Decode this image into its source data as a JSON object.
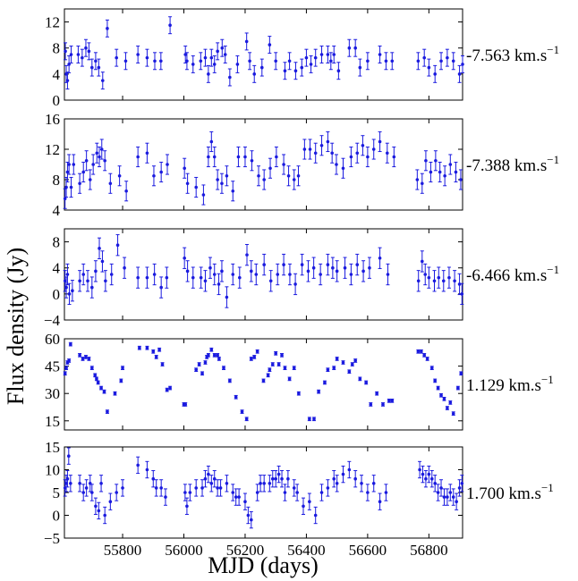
{
  "figure": {
    "ylabel": "Flux density (Jy)",
    "xlabel": "MJD (days)",
    "series_color": "#1a1adf"
  },
  "chart_data": [
    {
      "type": "scatter",
      "velocity_label": "-7.563 km.s",
      "velocity_unit_exp": "−1",
      "xlim": [
        55610,
        56910
      ],
      "ylim": [
        0,
        14
      ],
      "yticks": [
        0,
        4,
        8,
        12
      ],
      "xticks": [
        55800,
        56000,
        56200,
        56400,
        56600,
        56800
      ],
      "err": 1.3,
      "x": [
        55613,
        55616,
        55620,
        55625,
        55632,
        55655,
        55668,
        55680,
        55690,
        55700,
        55712,
        55722,
        55735,
        55750,
        55780,
        55810,
        55850,
        55880,
        55905,
        55925,
        55955,
        56005,
        56010,
        56030,
        56055,
        56070,
        56080,
        56090,
        56100,
        56110,
        56125,
        56135,
        56150,
        56175,
        56205,
        56215,
        56230,
        56255,
        56280,
        56300,
        56330,
        56345,
        56365,
        56385,
        56400,
        56415,
        56430,
        56450,
        56470,
        56480,
        56490,
        56505,
        56540,
        56560,
        56575,
        56600,
        56640,
        56660,
        56680,
        56765,
        56785,
        56800,
        56820,
        56840,
        56860,
        56880,
        56900,
        56910
      ],
      "y": [
        7.5,
        4.0,
        3.0,
        5.5,
        7.0,
        7.0,
        6.5,
        8.0,
        7.5,
        5.0,
        6.0,
        5.0,
        3.0,
        11.0,
        6.5,
        6.0,
        7.0,
        6.5,
        6.0,
        6.0,
        11.5,
        7.0,
        6.0,
        5.5,
        6.0,
        6.5,
        4.0,
        6.5,
        5.5,
        7.5,
        8.0,
        7.0,
        3.5,
        5.5,
        9.0,
        6.0,
        4.0,
        5.0,
        8.5,
        6.0,
        4.5,
        6.0,
        4.5,
        5.0,
        6.5,
        5.5,
        6.5,
        7.0,
        7.0,
        6.0,
        7.0,
        4.5,
        8.0,
        8.0,
        5.0,
        6.0,
        7.0,
        6.0,
        6.0,
        6.0,
        6.5,
        5.0,
        4.0,
        6.0,
        6.5,
        6.0,
        4.0,
        5.5
      ]
    },
    {
      "type": "scatter",
      "velocity_label": "-7.388 km.s",
      "velocity_unit_exp": "−1",
      "xlim": [
        55610,
        56910
      ],
      "ylim": [
        4,
        16
      ],
      "yticks": [
        4,
        8,
        12,
        16
      ],
      "xticks": [
        55800,
        56000,
        56200,
        56400,
        56600,
        56800
      ],
      "err": 1.3,
      "x": [
        55612,
        55616,
        55620,
        55625,
        55632,
        55640,
        55660,
        55672,
        55682,
        55694,
        55704,
        55716,
        55724,
        55732,
        55742,
        55760,
        55790,
        55812,
        55850,
        55880,
        55902,
        55926,
        55946,
        56002,
        56012,
        56040,
        56064,
        56080,
        56090,
        56100,
        56110,
        56124,
        56140,
        56160,
        56178,
        56200,
        56222,
        56244,
        56262,
        56282,
        56302,
        56326,
        56342,
        56360,
        56374,
        56394,
        56412,
        56430,
        56450,
        56470,
        56484,
        56498,
        56520,
        56546,
        56566,
        56584,
        56600,
        56620,
        56640,
        56664,
        56686,
        56762,
        56778,
        56790,
        56806,
        56822,
        56836,
        56852,
        56870,
        56888,
        56904
      ],
      "y": [
        5.5,
        7.0,
        9.0,
        10.0,
        7.0,
        10.0,
        7.5,
        9.0,
        10.5,
        8.0,
        10.0,
        11.5,
        11.0,
        12.0,
        10.5,
        7.5,
        8.5,
        6.5,
        11.0,
        11.5,
        8.5,
        9.0,
        10.0,
        9.5,
        7.5,
        7.0,
        6.0,
        11.0,
        13.0,
        11.0,
        8.0,
        7.5,
        8.5,
        6.5,
        11.0,
        11.0,
        10.5,
        8.5,
        8.0,
        9.5,
        11.0,
        10.0,
        8.5,
        8.0,
        8.5,
        12.0,
        12.0,
        11.5,
        12.5,
        13.0,
        11.5,
        10.0,
        9.5,
        11.0,
        11.5,
        12.5,
        11.0,
        12.0,
        13.0,
        11.5,
        11.0,
        8.0,
        7.5,
        10.5,
        9.0,
        10.5,
        9.0,
        8.5,
        10.0,
        9.0,
        8.0
      ]
    },
    {
      "type": "scatter",
      "velocity_label": "-6.466 km.s",
      "velocity_unit_exp": "−1",
      "xlim": [
        55610,
        56910
      ],
      "ylim": [
        -4,
        10
      ],
      "yticks": [
        -4,
        0,
        4,
        8
      ],
      "xticks": [
        55800,
        56000,
        56200,
        56400,
        56600,
        56800
      ],
      "err": 1.6,
      "x": [
        55612,
        55616,
        55620,
        55626,
        55636,
        55660,
        55672,
        55686,
        55700,
        55712,
        55724,
        55734,
        55744,
        55764,
        55784,
        55806,
        55850,
        55880,
        55904,
        55926,
        55944,
        56002,
        56012,
        56030,
        56056,
        56070,
        56086,
        56100,
        56114,
        56124,
        56140,
        56160,
        56182,
        56206,
        56220,
        56236,
        56262,
        56284,
        56306,
        56326,
        56346,
        56364,
        56386,
        56406,
        56424,
        56446,
        56470,
        56486,
        56500,
        56526,
        56546,
        56566,
        56586,
        56606,
        56640,
        56666,
        56766,
        56778,
        56788,
        56800,
        56818,
        56832,
        56848,
        56866,
        56884,
        56900,
        56908
      ],
      "y": [
        2.0,
        1.0,
        3.0,
        0.0,
        0.5,
        2.0,
        3.0,
        2.0,
        1.0,
        3.5,
        7.0,
        5.0,
        2.0,
        3.0,
        7.5,
        4.0,
        2.5,
        2.5,
        3.0,
        1.0,
        2.5,
        5.5,
        3.5,
        2.5,
        2.5,
        2.0,
        4.0,
        3.0,
        1.5,
        3.5,
        -0.5,
        3.0,
        2.5,
        6.0,
        3.5,
        3.0,
        4.5,
        2.0,
        3.0,
        4.5,
        3.0,
        1.5,
        4.5,
        3.5,
        4.0,
        3.0,
        4.5,
        4.0,
        3.5,
        4.0,
        3.0,
        4.5,
        3.5,
        4.0,
        5.5,
        3.0,
        2.0,
        5.0,
        3.0,
        2.5,
        2.0,
        2.5,
        2.0,
        2.5,
        2.0,
        1.5,
        0.0
      ]
    },
    {
      "type": "scatter",
      "velocity_label": "1.129 km.s",
      "velocity_unit_exp": "−1",
      "xlim": [
        55610,
        56910
      ],
      "ylim": [
        10,
        60
      ],
      "yticks": [
        15,
        30,
        45,
        60
      ],
      "xticks": [
        55800,
        56000,
        56200,
        56400,
        56600,
        56800
      ],
      "err": 0.9,
      "x": [
        55612,
        55616,
        55620,
        55625,
        55630,
        55660,
        55670,
        55680,
        55690,
        55700,
        55710,
        55715,
        55720,
        55730,
        55740,
        55750,
        55775,
        55795,
        55800,
        55855,
        55880,
        55900,
        55910,
        55920,
        55930,
        55945,
        55955,
        56000,
        56005,
        56040,
        56050,
        56060,
        56070,
        56075,
        56080,
        56090,
        56100,
        56110,
        56115,
        56130,
        56150,
        56170,
        56190,
        56205,
        56220,
        56230,
        56240,
        56260,
        56275,
        56280,
        56290,
        56300,
        56310,
        56320,
        56330,
        56345,
        56360,
        56375,
        56410,
        56425,
        56440,
        56460,
        56470,
        56490,
        56500,
        56520,
        56540,
        56550,
        56560,
        56575,
        56595,
        56610,
        56630,
        56650,
        56670,
        56680,
        56765,
        56775,
        56785,
        56795,
        56810,
        56820,
        56830,
        56840,
        56850,
        56860,
        56870,
        56880,
        56895,
        56905
      ],
      "y": [
        41.0,
        44.0,
        47.0,
        48.0,
        57.0,
        51.0,
        49.0,
        50.0,
        49.0,
        44.0,
        40.0,
        38.0,
        36.0,
        33.0,
        31.0,
        20.0,
        30.0,
        37.0,
        44.0,
        55.0,
        55.0,
        53.0,
        50.0,
        54.0,
        46.0,
        32.0,
        33.0,
        24.0,
        24.0,
        43.0,
        46.0,
        41.0,
        47.0,
        50.0,
        51.0,
        54.0,
        51.0,
        51.0,
        49.0,
        44.0,
        37.0,
        28.0,
        20.0,
        16.0,
        49.0,
        50.0,
        53.0,
        37.0,
        40.0,
        43.0,
        46.0,
        52.0,
        46.0,
        51.0,
        44.0,
        38.0,
        44.0,
        30.0,
        16.0,
        16.0,
        31.0,
        36.0,
        43.0,
        44.0,
        49.0,
        47.0,
        42.0,
        46.0,
        48.0,
        38.0,
        36.0,
        24.0,
        30.0,
        24.0,
        26.0,
        26.0,
        53.0,
        53.0,
        51.0,
        49.0,
        44.0,
        37.0,
        33.0,
        29.0,
        27.0,
        22.0,
        25.0,
        19.0,
        33.0,
        41.0
      ]
    },
    {
      "type": "scatter",
      "velocity_label": "1.700 km.s",
      "velocity_unit_exp": "−1",
      "xlim": [
        55610,
        56910
      ],
      "ylim": [
        -5,
        15
      ],
      "yticks": [
        -5,
        0,
        5,
        10,
        15
      ],
      "xticks": [
        55800,
        56000,
        56200,
        56400,
        56600,
        56800
      ],
      "err": 1.8,
      "x": [
        55612,
        55616,
        55620,
        55624,
        55630,
        55660,
        55672,
        55682,
        55694,
        55700,
        55712,
        55722,
        55730,
        55742,
        55760,
        55780,
        55800,
        55850,
        55880,
        55900,
        55910,
        55926,
        55940,
        56004,
        56010,
        56020,
        56040,
        56060,
        56070,
        56080,
        56090,
        56100,
        56110,
        56120,
        56140,
        56160,
        56170,
        56180,
        56200,
        56210,
        56220,
        56240,
        56250,
        56262,
        56280,
        56290,
        56300,
        56310,
        56320,
        56330,
        56340,
        56360,
        56370,
        56390,
        56410,
        56430,
        56450,
        56470,
        56490,
        56500,
        56520,
        56540,
        56560,
        56580,
        56600,
        56620,
        56640,
        56660,
        56770,
        56780,
        56790,
        56800,
        56810,
        56820,
        56830,
        56840,
        56850,
        56860,
        56870,
        56880,
        56890,
        56900,
        56908
      ],
      "y": [
        6.0,
        7.0,
        8.0,
        13.0,
        7.0,
        7.0,
        5.0,
        6.0,
        7.0,
        5.0,
        2.0,
        1.0,
        7.0,
        0.0,
        3.0,
        5.0,
        6.0,
        11.0,
        10.0,
        8.0,
        6.0,
        6.0,
        4.0,
        5.0,
        2.0,
        5.0,
        6.0,
        6.0,
        8.0,
        9.0,
        7.0,
        8.0,
        6.0,
        6.0,
        7.0,
        5.0,
        4.0,
        4.0,
        3.0,
        0.0,
        -1.0,
        5.0,
        7.0,
        7.0,
        7.0,
        8.0,
        8.0,
        9.0,
        8.0,
        5.0,
        8.0,
        6.0,
        5.0,
        2.0,
        3.0,
        0.0,
        5.0,
        6.0,
        8.0,
        7.0,
        9.0,
        10.0,
        8.0,
        7.0,
        5.0,
        7.0,
        3.0,
        5.0,
        10.0,
        9.0,
        8.0,
        9.0,
        8.0,
        7.0,
        5.0,
        6.0,
        4.0,
        4.0,
        5.0,
        4.0,
        3.0,
        6.0,
        7.0
      ]
    }
  ]
}
